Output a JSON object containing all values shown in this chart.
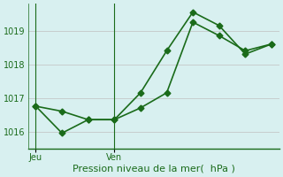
{
  "line1_x": [
    0,
    1,
    2,
    3,
    4,
    5,
    6,
    7,
    8,
    9
  ],
  "line1_y": [
    1016.75,
    1016.6,
    1016.35,
    1016.35,
    1016.7,
    1017.15,
    1019.25,
    1018.85,
    1018.4,
    1018.6
  ],
  "line2_x": [
    0,
    1,
    2,
    3,
    4,
    5,
    6,
    7,
    8,
    9
  ],
  "line2_y": [
    1016.75,
    1015.95,
    1016.35,
    1016.35,
    1017.15,
    1018.4,
    1019.55,
    1019.15,
    1018.3,
    1018.6
  ],
  "line_color": "#1a6b1a",
  "bg_color": "#d8f0f0",
  "grid_color": "#c0c0c0",
  "axis_color": "#1a6b1a",
  "ylim": [
    1015.5,
    1019.8
  ],
  "yticks": [
    1016,
    1017,
    1018,
    1019
  ],
  "xlabel": "Pression niveau de la mer(  hPa )",
  "xlabel_color": "#1a6b1a",
  "xtick_labels": [
    "Jeu",
    "Ven"
  ],
  "xtick_positions": [
    0,
    3
  ],
  "title_color": "#1a6b1a",
  "marker": "D",
  "markersize": 3.5,
  "linewidth": 1.2
}
